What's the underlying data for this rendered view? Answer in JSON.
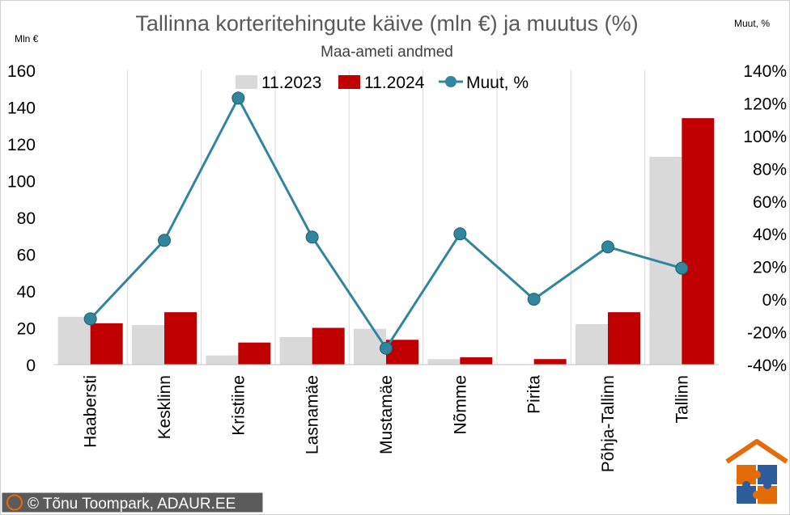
{
  "chart_data": {
    "type": "bar",
    "title": "Tallinna korteritehingute käive (mln €) ja muutus (%)",
    "subtitle": "Maa-ameti andmed",
    "y_left_label": "Mln €",
    "y_right_label": "Muut, %",
    "categories": [
      "Haabersti",
      "Kesklinn",
      "Kristiine",
      "Lasnamäe",
      "Mustamäe",
      "Nõmme",
      "Pirita",
      "Põhja-Tallinn",
      "Tallinn"
    ],
    "series": [
      {
        "name": "11.2023",
        "type": "bar",
        "axis": "left",
        "color": "#d9d9d9",
        "values": [
          26,
          21.5,
          5,
          15,
          19.5,
          3,
          0,
          22,
          113
        ]
      },
      {
        "name": "11.2024",
        "type": "bar",
        "axis": "left",
        "color": "#c00000",
        "values": [
          22.5,
          28.5,
          12,
          20,
          13.5,
          4,
          3,
          28.5,
          134
        ]
      },
      {
        "name": "Muut, %",
        "type": "line",
        "axis": "right",
        "color": "#31859c",
        "values": [
          -12,
          36,
          123,
          38,
          -30,
          40,
          0,
          32,
          19
        ]
      }
    ],
    "y_left": {
      "min": 0,
      "max": 160,
      "step": 20,
      "ticks": [
        "0",
        "20",
        "40",
        "60",
        "80",
        "100",
        "120",
        "140",
        "160"
      ]
    },
    "y_right": {
      "min": -40,
      "max": 140,
      "step": 20,
      "ticks": [
        "-40%",
        "-20%",
        "0%",
        "20%",
        "40%",
        "60%",
        "80%",
        "100%",
        "120%",
        "140%"
      ]
    },
    "grid": "vertical",
    "legend": "top-center"
  },
  "credit": "© Tõnu Toompark, ADAUR.EE",
  "logo": "house-puzzle-logo",
  "colors": {
    "credit_bg": "#5b5b5b",
    "credit_copyright": "#e36c09",
    "logo_roof": "#e36c09",
    "logo_blue": "#2e5d9c"
  }
}
